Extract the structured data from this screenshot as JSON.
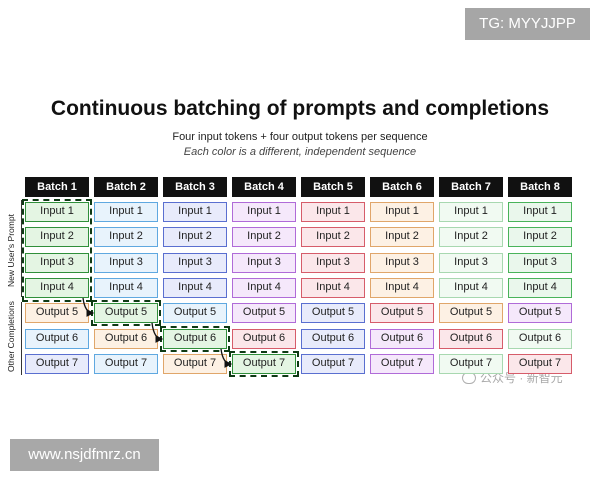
{
  "watermarks": {
    "top_right": "TG: MYYJJPP",
    "bottom_left": "www.nsjdfmrz.cn",
    "middle_right": "公众号 · 新智元"
  },
  "title": "Continuous batching of prompts and completions",
  "subtitle": "Four input tokens + four output tokens per sequence",
  "subtitle_italic": "Each color is a different, independent sequence",
  "side_labels": {
    "prompt": "New User's Prompt",
    "completion": "Other Completions"
  },
  "batches": [
    "Batch 1",
    "Batch 2",
    "Batch 3",
    "Batch 4",
    "Batch 5",
    "Batch 6",
    "Batch 7",
    "Batch 8"
  ],
  "rows": [
    "Input 1",
    "Input 2",
    "Input 3",
    "Input 4",
    "Output 5",
    "Output 6",
    "Output 7"
  ],
  "colors": [
    {
      "border": "#2f8f3a",
      "fill": "#e4f5e3"
    },
    {
      "border": "#5fa8e0",
      "fill": "#e8f3fc"
    },
    {
      "border": "#5a6fd0",
      "fill": "#e8ebfb"
    },
    {
      "border": "#b06bd8",
      "fill": "#f5e8fb"
    },
    {
      "border": "#d65c6a",
      "fill": "#fbe7ea"
    },
    {
      "border": "#e0a66a",
      "fill": "#fdf1e4"
    },
    {
      "border": "#a8d8b0",
      "fill": "#f1faf2"
    },
    {
      "border": "#49b35a",
      "fill": "#eaf7ec"
    }
  ],
  "grid_cells": [
    [
      "Input 1",
      "Input 1",
      "Input 1",
      "Input 1",
      "Input 1",
      "Input 1",
      "Input 1",
      "Input 1"
    ],
    [
      "Input 2",
      "Input 2",
      "Input 2",
      "Input 2",
      "Input 2",
      "Input 2",
      "Input 2",
      "Input 2"
    ],
    [
      "Input 3",
      "Input 3",
      "Input 3",
      "Input 3",
      "Input 3",
      "Input 3",
      "Input 3",
      "Input 3"
    ],
    [
      "Input 4",
      "Input 4",
      "Input 4",
      "Input 4",
      "Input 4",
      "Input 4",
      "Input 4",
      "Input 4"
    ],
    [
      "Output 5",
      "Output 5",
      "Output 5",
      "Output 5",
      "Output 5",
      "Output 5",
      "Output 5",
      "Output 5"
    ],
    [
      "Output 6",
      "Output 6",
      "Output 6",
      "Output 6",
      "Output 6",
      "Output 6",
      "Output 6",
      "Output 6"
    ],
    [
      "Output 7",
      "Output 7",
      "Output 7",
      "Output 7",
      "Output 7",
      "Output 7",
      "Output 7",
      "Output 7"
    ]
  ],
  "cell_color_index": [
    [
      0,
      1,
      2,
      3,
      4,
      5,
      6,
      7
    ],
    [
      0,
      1,
      2,
      3,
      4,
      5,
      6,
      7
    ],
    [
      0,
      1,
      2,
      3,
      4,
      5,
      6,
      7
    ],
    [
      0,
      1,
      2,
      3,
      4,
      5,
      6,
      7
    ],
    [
      5,
      0,
      1,
      3,
      2,
      4,
      5,
      3
    ],
    [
      1,
      5,
      0,
      4,
      2,
      3,
      4,
      6
    ],
    [
      2,
      1,
      5,
      0,
      2,
      3,
      6,
      4
    ]
  ],
  "highlight_path": [
    [
      0,
      0
    ],
    [
      1,
      0
    ],
    [
      2,
      0
    ],
    [
      3,
      0
    ],
    [
      4,
      1
    ],
    [
      5,
      2
    ],
    [
      6,
      3
    ]
  ]
}
